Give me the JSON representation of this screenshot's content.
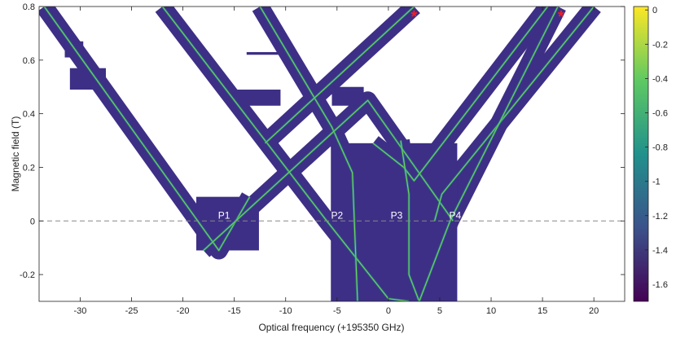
{
  "chart_data": {
    "type": "heatmap",
    "xlabel": "Optical frequency (+195350 GHz)",
    "ylabel": "Magnetic field (T)",
    "xlim": [
      -34,
      23
    ],
    "ylim": [
      -0.3,
      0.8
    ],
    "x_ticks": [
      -30,
      -25,
      -20,
      -15,
      -10,
      -5,
      0,
      5,
      10,
      15,
      20
    ],
    "y_ticks": [
      -0.2,
      0,
      0.2,
      0.4,
      0.6,
      0.8
    ],
    "grid": false,
    "colorbar": {
      "ticks": [
        0,
        -0.2,
        -0.4,
        -0.6,
        -0.8,
        -1,
        -1.2,
        -1.4,
        -1.6
      ],
      "range": [
        -1.7,
        0.02
      ],
      "colormap": [
        "#440154",
        "#3b528b",
        "#21918c",
        "#5ec962",
        "#fde725"
      ]
    },
    "background_color": "#3d2f86",
    "zero_line": {
      "y": 0,
      "style": "dashed",
      "color": "#888888"
    },
    "peak_labels": [
      {
        "text": "P1",
        "x": -16,
        "y": 0.0
      },
      {
        "text": "P2",
        "x": -5,
        "y": 0.0
      },
      {
        "text": "P3",
        "x": 0.8,
        "y": 0.0
      },
      {
        "text": "P4",
        "x": 6.5,
        "y": 0.0
      }
    ],
    "markers": [
      {
        "symbol": "*",
        "x": 2.5,
        "y": 0.77,
        "color": "#ff1a1a"
      },
      {
        "symbol": "*",
        "x": 16.8,
        "y": 0.77,
        "color": "#ff1a1a"
      }
    ],
    "scan_regions": [
      {
        "x": [
          -18.7,
          -12.6
        ],
        "y": [
          -0.11,
          0.09
        ]
      },
      {
        "x": [
          -5.6,
          6.7
        ],
        "y": [
          -0.3,
          0.29
        ]
      },
      {
        "x": [
          -15.7,
          -10.5
        ],
        "y": [
          0.43,
          0.49
        ]
      },
      {
        "x": [
          -5.5,
          -2.4
        ],
        "y": [
          0.43,
          0.5
        ]
      },
      {
        "x": [
          -13.8,
          -10.7
        ],
        "y": [
          0.62,
          0.63
        ]
      },
      {
        "x": [
          -31.5,
          -29.7
        ],
        "y": [
          0.61,
          0.67
        ]
      },
      {
        "x": [
          -31.0,
          -27.5
        ],
        "y": [
          0.49,
          0.57
        ]
      }
    ],
    "series": [
      {
        "x": [
          -33.5,
          -16.5,
          -13.5
        ],
        "y": [
          0.8,
          -0.11,
          0.09
        ]
      },
      {
        "x": [
          -22.0,
          -6.0,
          0.0,
          2.0
        ],
        "y": [
          0.8,
          0.0,
          -0.29,
          -0.3
        ]
      },
      {
        "x": [
          -12.5,
          -5.5,
          -3.5,
          -3.0
        ],
        "y": [
          0.8,
          0.35,
          0.18,
          -0.3
        ]
      },
      {
        "x": [
          -18.0,
          -2.0,
          6.3
        ],
        "y": [
          -0.11,
          0.45,
          0.0
        ]
      },
      {
        "x": [
          -12.0,
          2.5
        ],
        "y": [
          0.29,
          0.8
        ]
      },
      {
        "x": [
          -1.5,
          1.5,
          2.5,
          15.5
        ],
        "y": [
          0.29,
          0.2,
          0.15,
          0.8
        ]
      },
      {
        "x": [
          1.2,
          2.0,
          2.0,
          3.0
        ],
        "y": [
          0.3,
          0.1,
          -0.2,
          -0.3
        ]
      },
      {
        "x": [
          4.5,
          5.2,
          20.0
        ],
        "y": [
          0.0,
          0.1,
          0.8
        ]
      },
      {
        "x": [
          3.0,
          6.0,
          16.5
        ],
        "y": [
          -0.3,
          0.0,
          0.8
        ]
      }
    ]
  }
}
